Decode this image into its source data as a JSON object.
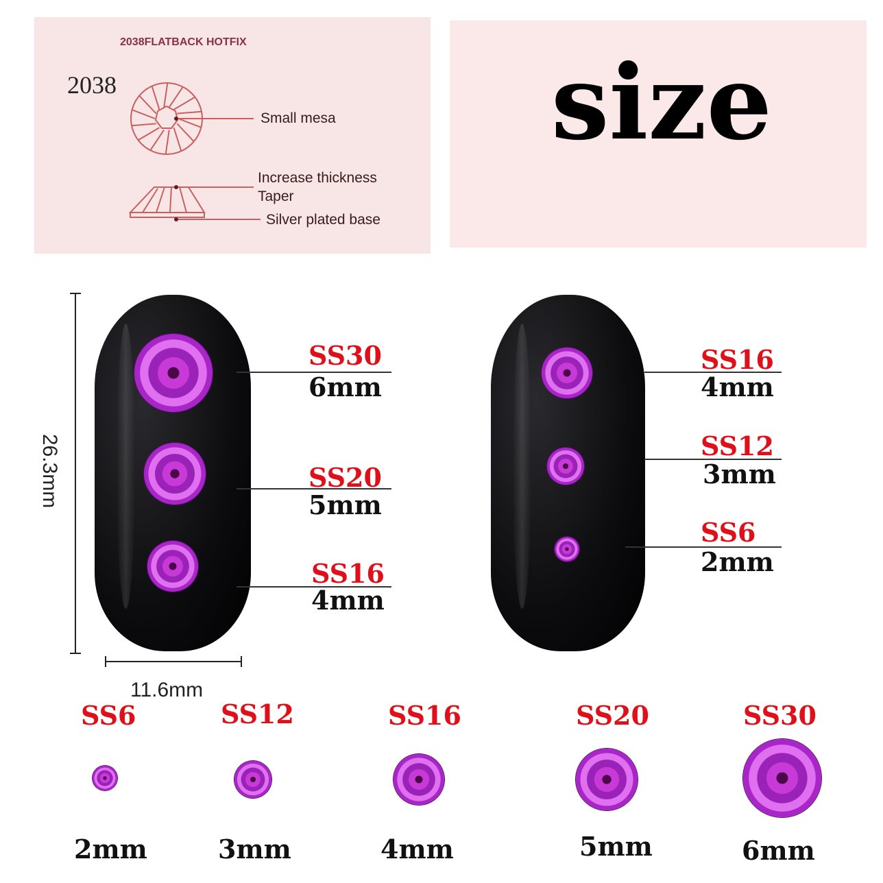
{
  "diagram": {
    "header": "2038FLATBACK HOTFIX",
    "model": "2038",
    "callouts": [
      "Small mesa",
      "Increase thickness",
      "Taper",
      "Silver plated base"
    ]
  },
  "title": "size",
  "dimensions": {
    "height": "26.3mm",
    "width": "11.6mm"
  },
  "left_nail": [
    {
      "code": "SS30",
      "size": "6mm"
    },
    {
      "code": "SS20",
      "size": "5mm"
    },
    {
      "code": "SS16",
      "size": "4mm"
    }
  ],
  "right_nail": [
    {
      "code": "SS16",
      "size": "4mm"
    },
    {
      "code": "SS12",
      "size": "3mm"
    },
    {
      "code": "SS6",
      "size": "2mm"
    }
  ],
  "bottom_row": [
    {
      "code": "SS6",
      "size": "2mm"
    },
    {
      "code": "SS12",
      "size": "3mm"
    },
    {
      "code": "SS16",
      "size": "4mm"
    },
    {
      "code": "SS20",
      "size": "5mm"
    },
    {
      "code": "SS30",
      "size": "6mm"
    }
  ],
  "colors": {
    "code_red": "#e0101a",
    "gem_purple": "#b02ad8",
    "panel_pink": "#f8e6e6",
    "diagram_line": "#c86060"
  }
}
